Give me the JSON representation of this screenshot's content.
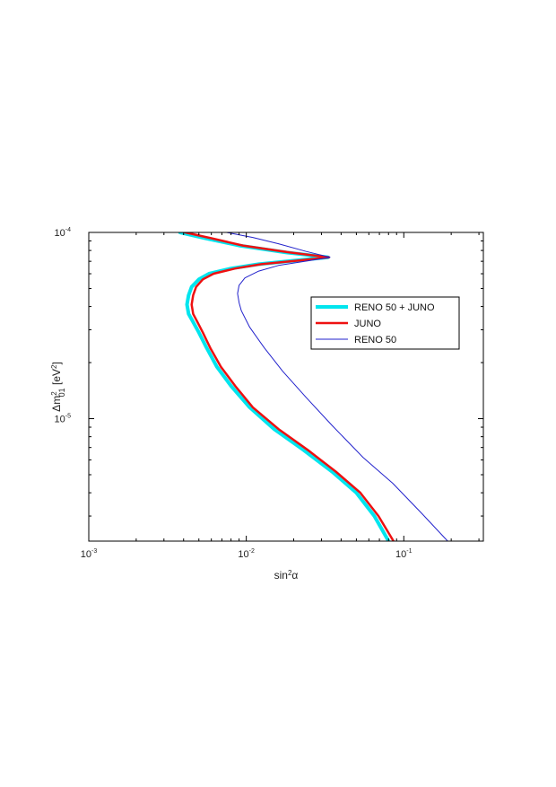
{
  "chart_data": {
    "type": "line",
    "title": "",
    "xlabel": {
      "base": "sin",
      "sup": "2",
      "rest": "α"
    },
    "ylabel": {
      "pre": "Δm",
      "sup": "2",
      "sub": "01",
      "post": " [eV",
      "unit_sup": "2",
      "close": "]"
    },
    "x_scale": "log",
    "y_scale": "log",
    "xlim": [
      0.001,
      0.32
    ],
    "ylim": [
      2.2e-06,
      0.0001
    ],
    "x_ticks": [
      {
        "value": 0.001,
        "base": "10",
        "exp": "-3"
      },
      {
        "value": 0.01,
        "base": "10",
        "exp": "-2"
      },
      {
        "value": 0.1,
        "base": "10",
        "exp": "-1"
      }
    ],
    "y_ticks": [
      {
        "value": 1e-05,
        "base": "10",
        "exp": "-5"
      },
      {
        "value": 0.0001,
        "base": "10",
        "exp": "-4"
      }
    ],
    "grid": false,
    "legend_position": "right",
    "series": [
      {
        "name": "RENO 50 + JUNO",
        "color": "#00e5ee",
        "width": 4,
        "points": [
          [
            0.0038,
            0.0001
          ],
          [
            0.0055,
            9.3e-05
          ],
          [
            0.009,
            8.5e-05
          ],
          [
            0.018,
            7.8e-05
          ],
          [
            0.033,
            7.35e-05
          ],
          [
            0.02,
            7.05e-05
          ],
          [
            0.012,
            6.75e-05
          ],
          [
            0.008,
            6.4e-05
          ],
          [
            0.0058,
            6e-05
          ],
          [
            0.005,
            5.6e-05
          ],
          [
            0.0045,
            5.1e-05
          ],
          [
            0.0043,
            4.6e-05
          ],
          [
            0.0042,
            4.1e-05
          ],
          [
            0.0043,
            3.65e-05
          ],
          [
            0.0046,
            3.3e-05
          ],
          [
            0.005,
            2.9e-05
          ],
          [
            0.0056,
            2.4e-05
          ],
          [
            0.0065,
            1.9e-05
          ],
          [
            0.008,
            1.5e-05
          ],
          [
            0.0105,
            1.15e-05
          ],
          [
            0.015,
            8.8e-06
          ],
          [
            0.023,
            6.8e-06
          ],
          [
            0.035,
            5.2e-06
          ],
          [
            0.05,
            4e-06
          ],
          [
            0.065,
            3e-06
          ],
          [
            0.08,
            2.2e-06
          ]
        ]
      },
      {
        "name": "JUNO",
        "color": "#ee1111",
        "width": 2.5,
        "points": [
          [
            0.0041,
            0.0001
          ],
          [
            0.006,
            9.3e-05
          ],
          [
            0.0095,
            8.5e-05
          ],
          [
            0.019,
            7.8e-05
          ],
          [
            0.0335,
            7.35e-05
          ],
          [
            0.021,
            7.05e-05
          ],
          [
            0.0125,
            6.75e-05
          ],
          [
            0.0085,
            6.4e-05
          ],
          [
            0.0062,
            6e-05
          ],
          [
            0.0053,
            5.6e-05
          ],
          [
            0.0048,
            5.1e-05
          ],
          [
            0.0046,
            4.6e-05
          ],
          [
            0.0045,
            4.1e-05
          ],
          [
            0.0046,
            3.65e-05
          ],
          [
            0.0049,
            3.3e-05
          ],
          [
            0.0053,
            2.9e-05
          ],
          [
            0.0059,
            2.4e-05
          ],
          [
            0.0069,
            1.9e-05
          ],
          [
            0.0085,
            1.5e-05
          ],
          [
            0.011,
            1.15e-05
          ],
          [
            0.016,
            8.8e-06
          ],
          [
            0.0245,
            6.8e-06
          ],
          [
            0.037,
            5.2e-06
          ],
          [
            0.053,
            4e-06
          ],
          [
            0.069,
            3e-06
          ],
          [
            0.086,
            2.2e-06
          ]
        ]
      },
      {
        "name": "RENO 50",
        "color": "#2222cc",
        "width": 1,
        "points": [
          [
            0.0075,
            0.0001
          ],
          [
            0.011,
            9.4e-05
          ],
          [
            0.016,
            8.7e-05
          ],
          [
            0.024,
            7.9e-05
          ],
          [
            0.034,
            7.35e-05
          ],
          [
            0.025,
            7.05e-05
          ],
          [
            0.016,
            6.65e-05
          ],
          [
            0.012,
            6.2e-05
          ],
          [
            0.0098,
            5.7e-05
          ],
          [
            0.009,
            5.2e-05
          ],
          [
            0.0088,
            4.7e-05
          ],
          [
            0.009,
            4.2e-05
          ],
          [
            0.0093,
            3.8e-05
          ],
          [
            0.0105,
            3.1e-05
          ],
          [
            0.013,
            2.4e-05
          ],
          [
            0.017,
            1.8e-05
          ],
          [
            0.024,
            1.3e-05
          ],
          [
            0.035,
            9.2e-06
          ],
          [
            0.055,
            6.2e-06
          ],
          [
            0.085,
            4.5e-06
          ],
          [
            0.13,
            3.1e-06
          ],
          [
            0.19,
            2.2e-06
          ]
        ]
      }
    ]
  }
}
